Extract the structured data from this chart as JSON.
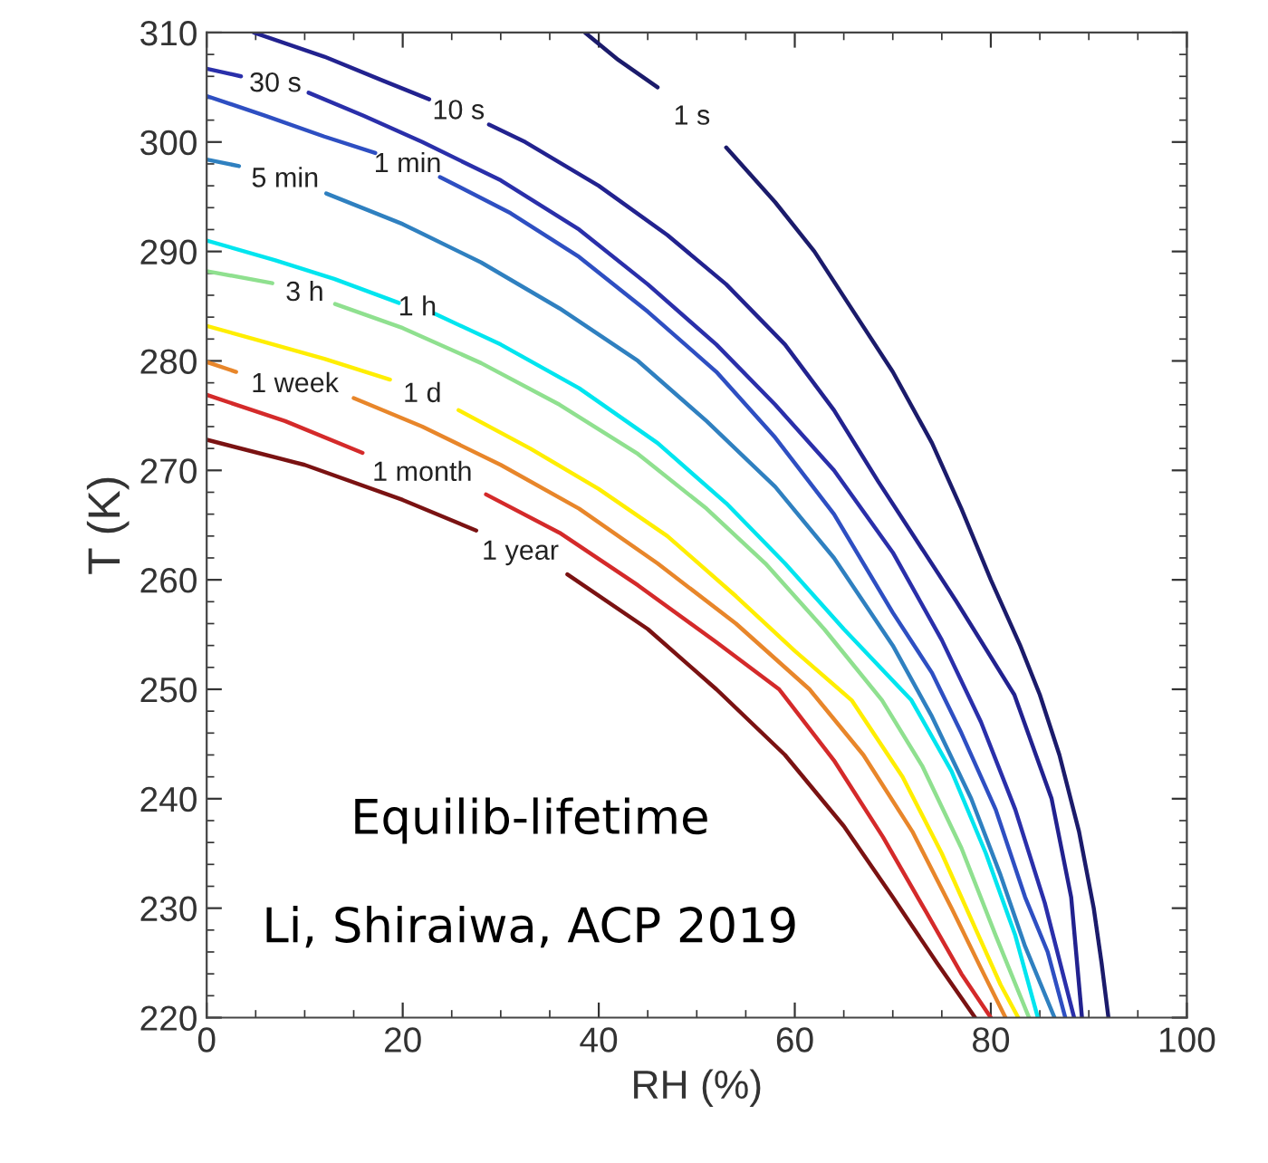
{
  "chart_data": {
    "type": "line",
    "xlabel": "RH (%)",
    "ylabel": "T (K)",
    "xlim": [
      0,
      100
    ],
    "ylim": [
      220,
      310
    ],
    "xticks": [
      0,
      20,
      40,
      60,
      80,
      100
    ],
    "yticks": [
      220,
      230,
      240,
      250,
      260,
      270,
      280,
      290,
      300,
      310
    ],
    "grid": false,
    "legend": false,
    "annotations": [
      "Equilib-lifetime",
      "Li, Shiraiwa, ACP 2019"
    ],
    "series": [
      {
        "name": "1 s",
        "color": "#1b1b6b",
        "x": [
          38.6,
          42,
          46,
          49.5,
          53,
          58,
          62,
          66,
          70,
          74,
          77,
          80,
          83,
          85,
          87,
          89,
          90.5,
          91.3,
          92
        ],
        "values": [
          310,
          307.5,
          305,
          null,
          299.5,
          294.5,
          290,
          284.5,
          279,
          272.5,
          266.5,
          260,
          254,
          249.5,
          244,
          237,
          230,
          225,
          220
        ]
      },
      {
        "name": "10 s",
        "color": "#22228f",
        "x": [
          4.8,
          12,
          18,
          22.7,
          25.7,
          28.8,
          32.5,
          40,
          47,
          53,
          59,
          64,
          68.5,
          76.5,
          82.4,
          86.2,
          88.2,
          89.3
        ],
        "values": [
          310,
          307.8,
          305.6,
          303.9,
          null,
          301.6,
          300,
          296,
          291.5,
          287,
          281.5,
          275.5,
          269,
          258,
          249.5,
          240,
          231,
          220
        ]
      },
      {
        "name": "30 s",
        "color": "#2a2faa",
        "x": [
          0,
          3.5,
          7,
          10.4,
          16,
          22,
          30,
          38,
          45,
          52,
          58,
          64,
          70,
          75,
          79,
          82.5,
          85.5,
          88.5
        ],
        "values": [
          306.7,
          306,
          null,
          304.5,
          302.4,
          300,
          296.5,
          292,
          287,
          281.5,
          276,
          270,
          262.5,
          254.5,
          247,
          239,
          230.5,
          220
        ]
      },
      {
        "name": "1 min",
        "color": "#2e4fc2",
        "x": [
          0,
          6,
          12,
          17.2,
          20.5,
          23.8,
          31,
          38,
          45,
          52,
          58,
          64,
          70,
          74,
          77,
          80.5,
          83.5,
          85.8,
          87.6
        ],
        "values": [
          304.2,
          302.4,
          300.5,
          299,
          null,
          296.8,
          293.5,
          289.5,
          284.5,
          279,
          273,
          266,
          257,
          251.5,
          246,
          239,
          231,
          226,
          220
        ]
      },
      {
        "name": "5 min",
        "color": "#2f80c0",
        "x": [
          0,
          3.3,
          8,
          12.2,
          20,
          28,
          36,
          44,
          51,
          58,
          64,
          70,
          74,
          78,
          81,
          83.5,
          86.5
        ],
        "values": [
          298.4,
          297.8,
          null,
          295.3,
          292.5,
          289,
          284.8,
          280,
          274.5,
          268.5,
          262,
          254,
          247.5,
          240,
          233,
          226.5,
          220
        ]
      },
      {
        "name": "1 h",
        "color": "#00e5ef",
        "x": [
          0,
          7,
          13,
          19.6,
          21.5,
          23.3,
          30,
          38,
          46,
          53,
          59,
          65,
          71.9,
          76,
          79.5,
          82.5,
          84.8
        ],
        "values": [
          291,
          289.2,
          287.5,
          285.3,
          null,
          284.3,
          281.5,
          277.5,
          272.5,
          267,
          261.5,
          255.5,
          249,
          242.5,
          235,
          227.5,
          220
        ]
      },
      {
        "name": "3 h",
        "color": "#8fe08f",
        "x": [
          0,
          6.7,
          10,
          13.1,
          20,
          28,
          36,
          44,
          51,
          57,
          63,
          68.9,
          73,
          77,
          80.5,
          83.9
        ],
        "values": [
          288.2,
          287.1,
          null,
          285.2,
          283,
          279.8,
          276,
          271.5,
          266.5,
          261.5,
          255.5,
          249,
          243,
          235.5,
          227.5,
          220
        ]
      },
      {
        "name": "1 d",
        "color": "#ffee00",
        "x": [
          0,
          6,
          12,
          18.7,
          22,
          25.7,
          33,
          40,
          47,
          54,
          60,
          65.8,
          71,
          75,
          78.5,
          81,
          82.8
        ],
        "values": [
          283.2,
          281.7,
          280.2,
          278.3,
          null,
          275.5,
          272,
          268.3,
          264,
          258.5,
          253.5,
          249,
          242,
          235,
          228,
          223,
          220
        ]
      },
      {
        "name": "1 week",
        "color": "#e8862a",
        "x": [
          0,
          3,
          9,
          15,
          22,
          30,
          38,
          46,
          54,
          61.5,
          67,
          72,
          76,
          79,
          81.5
        ],
        "values": [
          279.9,
          279,
          null,
          276.6,
          274,
          270.5,
          266.5,
          261.5,
          256,
          250,
          244,
          237,
          230,
          224.5,
          220
        ]
      },
      {
        "name": "1 month",
        "color": "#d42a2a",
        "x": [
          0,
          8,
          15.9,
          22,
          28.5,
          36,
          44,
          52,
          58.4,
          64,
          69,
          73.5,
          77,
          80
        ],
        "values": [
          276.9,
          274.5,
          271.6,
          null,
          267.8,
          264.3,
          259.5,
          254.3,
          250,
          243.5,
          236.5,
          229.5,
          224,
          220
        ]
      },
      {
        "name": "1 year",
        "color": "#7a1212",
        "x": [
          0,
          10,
          20,
          27.5,
          32,
          36.8,
          45,
          52,
          59,
          65,
          70,
          74.5,
          78.4
        ],
        "values": [
          272.8,
          270.5,
          267.3,
          264.5,
          null,
          260.5,
          255.5,
          250,
          244,
          237.5,
          231,
          225,
          220
        ]
      }
    ]
  }
}
